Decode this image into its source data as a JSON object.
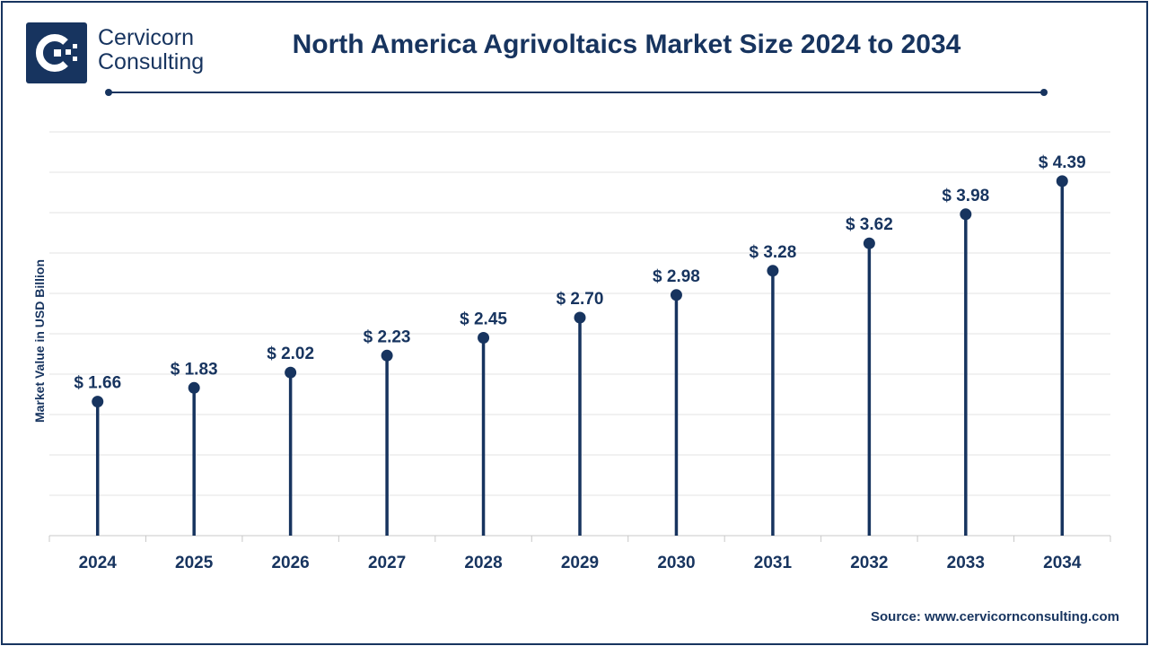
{
  "brand": {
    "line1": "Cervicorn",
    "line2": "Consulting",
    "color": "#17345f"
  },
  "source_text": "Source: www.cervicornconsulting.com",
  "chart_data": {
    "type": "lollipop",
    "title": "North America Agrivoltaics Market Size 2024 to 2034",
    "xlabel": "",
    "ylabel": "Market Value in USD Billion",
    "categories": [
      "2024",
      "2025",
      "2026",
      "2027",
      "2028",
      "2029",
      "2030",
      "2031",
      "2032",
      "2033",
      "2034"
    ],
    "values": [
      1.66,
      1.83,
      2.02,
      2.23,
      2.45,
      2.7,
      2.98,
      3.28,
      3.62,
      3.98,
      4.39
    ],
    "value_labels": [
      "$ 1.66",
      "$ 1.83",
      "$ 2.02",
      "$ 2.23",
      "$ 2.45",
      "$ 2.70",
      "$ 2.98",
      "$ 3.28",
      "$ 3.62",
      "$ 3.98",
      "$ 4.39"
    ],
    "ylim": [
      0,
      5
    ],
    "grid": true,
    "colors": {
      "series": "#17345f",
      "grid": "#e3e3e3",
      "axis": "#c8c8c8"
    }
  }
}
